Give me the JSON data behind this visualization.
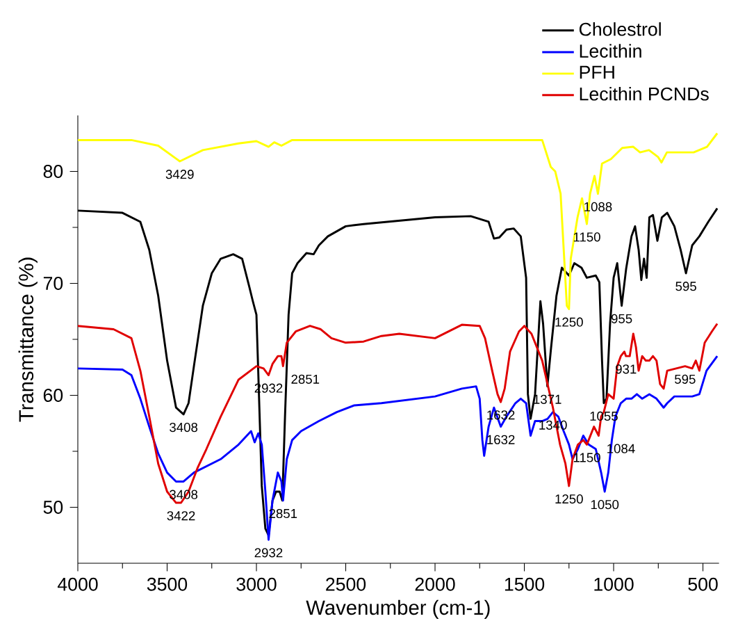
{
  "chart_data": {
    "type": "line",
    "xlabel": "Wavenumber (cm-1)",
    "ylabel": "Transmittance (%)",
    "xlim": [
      4000,
      410
    ],
    "ylim": [
      45,
      85
    ],
    "xticks": [
      4000,
      3500,
      3000,
      2500,
      2000,
      1500,
      1000,
      500
    ],
    "yticks": [
      50,
      60,
      70,
      80
    ],
    "legend": "top right",
    "series": [
      {
        "name": "Cholestrol",
        "color": "#000000",
        "x": [
          4000,
          3750,
          3650,
          3600,
          3550,
          3500,
          3450,
          3408,
          3380,
          3350,
          3300,
          3250,
          3200,
          3130,
          3080,
          3040,
          3020,
          3000,
          2990,
          2970,
          2950,
          2932,
          2910,
          2890,
          2870,
          2855,
          2840,
          2820,
          2800,
          2770,
          2720,
          2680,
          2650,
          2600,
          2500,
          2400,
          2000,
          1800,
          1700,
          1670,
          1640,
          1600,
          1560,
          1520,
          1490,
          1480,
          1465,
          1440,
          1410,
          1395,
          1371,
          1350,
          1320,
          1290,
          1250,
          1220,
          1180,
          1150,
          1100,
          1080,
          1065,
          1055,
          1040,
          1020,
          1000,
          980,
          955,
          930,
          900,
          880,
          860,
          845,
          830,
          815,
          800,
          780,
          755,
          730,
          700,
          660,
          625,
          595,
          560,
          520,
          470,
          420
        ],
        "values": [
          76.5,
          76.3,
          75.5,
          73.0,
          68.9,
          63.1,
          58.9,
          58.3,
          59.3,
          62.6,
          68.0,
          70.9,
          72.2,
          72.6,
          72.2,
          69.7,
          68.4,
          67.2,
          62.2,
          51.9,
          48.1,
          47.5,
          50.6,
          51.4,
          51.4,
          50.6,
          58.1,
          67.2,
          70.9,
          71.8,
          72.7,
          72.6,
          73.4,
          74.2,
          75.1,
          75.3,
          75.9,
          76.0,
          75.5,
          74.0,
          74.1,
          74.8,
          74.9,
          74.2,
          70.5,
          60.1,
          57.9,
          60.1,
          68.4,
          66.4,
          60.8,
          64.3,
          68.9,
          71.4,
          70.7,
          71.8,
          71.4,
          70.5,
          70.7,
          70.1,
          63.1,
          59.3,
          59.7,
          66.4,
          70.5,
          71.8,
          68.0,
          71.3,
          74.2,
          75.1,
          73.0,
          70.3,
          72.2,
          70.5,
          75.9,
          76.1,
          73.8,
          75.9,
          76.3,
          75.1,
          73.0,
          70.9,
          73.4,
          74.2,
          75.5,
          76.7
        ]
      },
      {
        "name": "Lecithin",
        "color": "#0000ff",
        "x": [
          4000,
          3750,
          3700,
          3650,
          3600,
          3550,
          3500,
          3450,
          3408,
          3350,
          3300,
          3200,
          3100,
          3030,
          3010,
          2990,
          2970,
          2950,
          2932,
          2910,
          2880,
          2860,
          2851,
          2830,
          2800,
          2750,
          2650,
          2550,
          2452,
          2300,
          2100,
          2000,
          1850,
          1770,
          1750,
          1735,
          1725,
          1700,
          1670,
          1632,
          1600,
          1550,
          1520,
          1490,
          1465,
          1440,
          1400,
          1370,
          1340,
          1310,
          1280,
          1250,
          1230,
          1200,
          1170,
          1140,
          1100,
          1070,
          1050,
          1030,
          1010,
          990,
          960,
          930,
          900,
          870,
          840,
          800,
          760,
          740,
          720,
          700,
          660,
          600,
          560,
          520,
          480,
          420
        ],
        "values": [
          62.4,
          62.3,
          61.8,
          59.7,
          57.2,
          54.8,
          53.1,
          52.3,
          52.3,
          53.1,
          53.5,
          54.3,
          55.6,
          56.8,
          55.8,
          56.6,
          55.6,
          51.4,
          47.1,
          50.6,
          53.1,
          52.3,
          50.6,
          54.3,
          56.0,
          56.8,
          57.7,
          58.5,
          59.1,
          59.3,
          59.7,
          59.9,
          60.6,
          60.8,
          59.7,
          56.0,
          54.6,
          57.2,
          58.9,
          57.2,
          58.1,
          59.3,
          59.7,
          59.3,
          56.4,
          57.7,
          57.7,
          57.9,
          58.5,
          58.1,
          56.8,
          55.6,
          54.3,
          55.2,
          56.4,
          55.6,
          55.2,
          53.1,
          51.4,
          53.1,
          56.0,
          58.1,
          59.3,
          59.7,
          59.7,
          60.1,
          59.7,
          60.1,
          59.7,
          59.3,
          58.9,
          59.3,
          59.9,
          59.9,
          59.9,
          60.1,
          62.2,
          63.5
        ]
      },
      {
        "name": "PFH",
        "color": "#ffff00",
        "x": [
          4000,
          3700,
          3550,
          3429,
          3300,
          3100,
          3000,
          2932,
          2900,
          2860,
          2800,
          1750,
          1400,
          1352,
          1327,
          1297,
          1262,
          1250,
          1240,
          1202,
          1177,
          1150,
          1132,
          1107,
          1088,
          1065,
          1015,
          952,
          890,
          852,
          802,
          752,
          732,
          702,
          552,
          477,
          420
        ],
        "values": [
          82.8,
          82.8,
          82.3,
          80.9,
          81.9,
          82.5,
          82.7,
          82.2,
          82.6,
          82.3,
          82.8,
          82.8,
          82.8,
          80.4,
          80.0,
          78.0,
          68.0,
          67.7,
          72.2,
          75.9,
          77.6,
          75.3,
          78.0,
          79.6,
          78.0,
          80.7,
          81.1,
          82.1,
          82.2,
          81.7,
          81.9,
          81.3,
          80.8,
          81.7,
          81.7,
          82.2,
          83.4
        ]
      },
      {
        "name": "Lecithin PCNDs",
        "color": "#e00000",
        "x": [
          4000,
          3800,
          3700,
          3650,
          3600,
          3550,
          3500,
          3450,
          3422,
          3380,
          3330,
          3280,
          3200,
          3100,
          3000,
          2960,
          2932,
          2910,
          2880,
          2860,
          2851,
          2830,
          2780,
          2700,
          2640,
          2580,
          2500,
          2400,
          2300,
          2200,
          2100,
          2000,
          1850,
          1750,
          1720,
          1680,
          1650,
          1632,
          1610,
          1580,
          1530,
          1500,
          1460,
          1400,
          1340,
          1300,
          1270,
          1250,
          1230,
          1200,
          1170,
          1150,
          1110,
          1084,
          1070,
          1055,
          1030,
          1000,
          980,
          960,
          940,
          931,
          910,
          890,
          875,
          860,
          840,
          820,
          800,
          780,
          760,
          740,
          720,
          700,
          650,
          600,
          560,
          540,
          520,
          490,
          450,
          420
        ],
        "values": [
          66.2,
          65.9,
          65.1,
          62.2,
          58.1,
          53.9,
          51.4,
          50.4,
          50.4,
          51.4,
          53.5,
          55.2,
          58.1,
          61.4,
          62.6,
          62.4,
          61.8,
          62.8,
          63.5,
          63.5,
          62.6,
          64.7,
          65.7,
          66.2,
          65.9,
          65.1,
          64.7,
          64.8,
          65.3,
          65.5,
          65.3,
          65.1,
          66.3,
          66.2,
          65.1,
          62.2,
          60.1,
          59.4,
          60.6,
          63.9,
          65.7,
          66.2,
          65.5,
          63.1,
          58.9,
          55.6,
          53.9,
          51.9,
          54.3,
          55.6,
          56.0,
          55.6,
          57.2,
          56.4,
          58.1,
          58.5,
          60.1,
          59.7,
          62.6,
          63.5,
          63.9,
          63.5,
          63.5,
          65.5,
          64.3,
          62.2,
          63.5,
          63.1,
          63.1,
          63.5,
          63.1,
          61.0,
          60.6,
          62.2,
          62.4,
          62.6,
          62.4,
          63.1,
          62.2,
          64.7,
          65.7,
          66.4
        ]
      }
    ],
    "annotations": [
      {
        "text": "3429",
        "x": 3429,
        "y": 80.9
      },
      {
        "text": "3408",
        "x": 3408,
        "y": 58.3
      },
      {
        "text": "3408",
        "x": 3408,
        "y": 52.3
      },
      {
        "text": "3422",
        "x": 3422,
        "y": 50.4
      },
      {
        "text": "2932",
        "x": 2932,
        "y": 61.8
      },
      {
        "text": "2851",
        "x": 2851,
        "y": 62.6
      },
      {
        "text": "2851",
        "x": 2851,
        "y": 50.6
      },
      {
        "text": "2932",
        "x": 2932,
        "y": 47.1
      },
      {
        "text": "1632",
        "x": 1632,
        "y": 59.4
      },
      {
        "text": "1632",
        "x": 1632,
        "y": 57.2
      },
      {
        "text": "1371",
        "x": 1371,
        "y": 60.8
      },
      {
        "text": "1340",
        "x": 1340,
        "y": 58.5
      },
      {
        "text": "1250",
        "x": 1250,
        "y": 67.7
      },
      {
        "text": "1250",
        "x": 1250,
        "y": 51.9
      },
      {
        "text": "1150",
        "x": 1150,
        "y": 75.3
      },
      {
        "text": "1088",
        "x": 1088,
        "y": 78.0
      },
      {
        "text": "1150",
        "x": 1150,
        "y": 55.6
      },
      {
        "text": "1084",
        "x": 1084,
        "y": 56.4
      },
      {
        "text": "1055",
        "x": 1055,
        "y": 59.3
      },
      {
        "text": "1050",
        "x": 1050,
        "y": 51.4
      },
      {
        "text": "955",
        "x": 955,
        "y": 68.0
      },
      {
        "text": "931",
        "x": 931,
        "y": 63.5
      },
      {
        "text": "595",
        "x": 595,
        "y": 70.9
      },
      {
        "text": "595",
        "x": 600,
        "y": 62.6
      }
    ]
  }
}
